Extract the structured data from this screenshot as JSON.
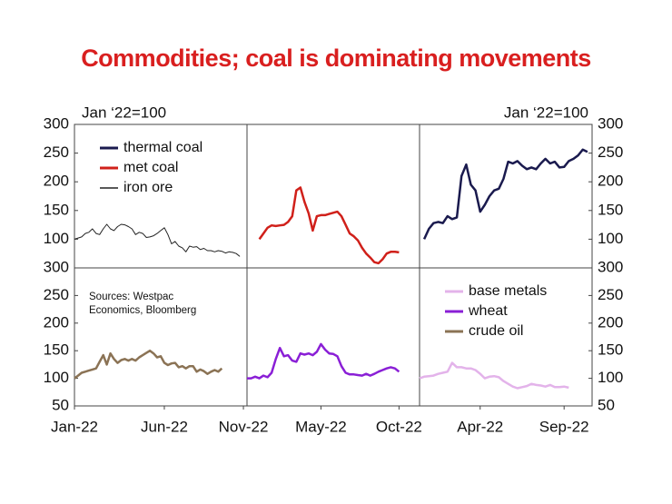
{
  "title": "Commodities; coal is dominating movements",
  "chart_data": [
    {
      "type": "line",
      "annotation": "Jan ‘22=100",
      "legend": "upper left",
      "yaxis_side": "left",
      "ylim": [
        50,
        300
      ],
      "yticks": [
        100,
        150,
        200,
        250,
        300
      ],
      "xlim": [
        0,
        48
      ],
      "x": [
        0,
        1,
        2,
        3,
        4,
        5,
        6,
        7,
        8,
        9,
        10,
        11,
        12,
        13,
        14,
        15,
        16,
        17,
        18,
        19,
        20,
        21,
        22,
        23,
        24,
        25,
        26,
        27,
        28,
        29,
        30,
        31,
        32,
        33,
        34,
        35,
        36,
        37,
        38,
        39,
        40,
        41,
        42,
        43,
        44,
        45,
        46
      ],
      "series": [
        {
          "name": "iron ore",
          "color": "#222222",
          "width": 1,
          "values": [
            100,
            102,
            104,
            110,
            112,
            118,
            110,
            108,
            118,
            126,
            118,
            115,
            122,
            126,
            125,
            122,
            118,
            108,
            112,
            110,
            103,
            104,
            106,
            110,
            115,
            120,
            108,
            92,
            96,
            88,
            85,
            78,
            88,
            86,
            87,
            82,
            84,
            80,
            80,
            78,
            80,
            79,
            76,
            78,
            77,
            75,
            70
          ]
        }
      ]
    },
    {
      "type": "line",
      "ylim": [
        50,
        300
      ],
      "xlim": [
        0,
        42
      ],
      "x": [
        3,
        4,
        5,
        6,
        7,
        8,
        9,
        10,
        11,
        12,
        13,
        14,
        15,
        16,
        17,
        18,
        19,
        20,
        21,
        22,
        23,
        24,
        25,
        26,
        27,
        28,
        29,
        30,
        31,
        32,
        33,
        34,
        35,
        36,
        37
      ],
      "series": [
        {
          "name": "met coal",
          "color": "#d0201a",
          "width": 2.5,
          "values": [
            100,
            110,
            120,
            124,
            123,
            124,
            125,
            130,
            140,
            185,
            190,
            165,
            145,
            115,
            140,
            142,
            142,
            144,
            146,
            148,
            140,
            125,
            110,
            105,
            98,
            85,
            75,
            68,
            60,
            58,
            65,
            75,
            78,
            78,
            77
          ]
        }
      ]
    },
    {
      "type": "line",
      "annotation": "Jan ‘22=100",
      "yaxis_side": "right",
      "ylim": [
        50,
        300
      ],
      "yticks": [
        100,
        150,
        200,
        250,
        300
      ],
      "xlim": [
        0,
        37
      ],
      "x": [
        1,
        2,
        3,
        4,
        5,
        6,
        7,
        8,
        9,
        10,
        11,
        12,
        13,
        14,
        15,
        16,
        17,
        18,
        19,
        20,
        21,
        22,
        23,
        24,
        25,
        26,
        27,
        28,
        29,
        30,
        31,
        32,
        33,
        34,
        35,
        36
      ],
      "series": [
        {
          "name": "thermal coal",
          "color": "#1a1a4e",
          "width": 2.5,
          "values": [
            100,
            118,
            128,
            130,
            128,
            140,
            135,
            138,
            210,
            230,
            195,
            185,
            148,
            160,
            175,
            185,
            188,
            205,
            235,
            232,
            236,
            228,
            222,
            225,
            222,
            232,
            240,
            232,
            235,
            225,
            226,
            236,
            240,
            246,
            256,
            252
          ]
        }
      ]
    },
    {
      "type": "line",
      "annotation": [
        "Sources: Westpac",
        "Economics, Bloomberg"
      ],
      "yaxis_side": "left",
      "ylim": [
        50,
        300
      ],
      "yticks": [
        50,
        100,
        150,
        200,
        250,
        300
      ],
      "xlim": [
        0,
        48
      ],
      "xticks": [
        {
          "value": 0,
          "label": "Jan-22"
        },
        {
          "value": 25,
          "label": "Jun-22"
        },
        {
          "value": 47,
          "label": "Nov-22"
        }
      ],
      "x": [
        0,
        1,
        2,
        3,
        4,
        5,
        6,
        7,
        8,
        9,
        10,
        11,
        12,
        13,
        14,
        15,
        16,
        17,
        18,
        19,
        20,
        21,
        22,
        23,
        24,
        25,
        26,
        27,
        28,
        29,
        30,
        31,
        32,
        33,
        34,
        35,
        36,
        37,
        38,
        39,
        40,
        41
      ],
      "series": [
        {
          "name": "crude oil",
          "color": "#8b7355",
          "width": 2.5,
          "values": [
            100,
            105,
            110,
            112,
            114,
            116,
            118,
            130,
            142,
            125,
            145,
            135,
            128,
            133,
            135,
            132,
            135,
            132,
            138,
            142,
            146,
            150,
            145,
            138,
            140,
            128,
            124,
            127,
            128,
            120,
            122,
            118,
            122,
            122,
            112,
            116,
            113,
            108,
            112,
            115,
            112,
            118
          ]
        }
      ]
    },
    {
      "type": "line",
      "ylim": [
        50,
        300
      ],
      "xlim": [
        0,
        42
      ],
      "xticks": [
        {
          "value": 18,
          "label": "May-22"
        },
        {
          "value": 37,
          "label": "Oct-22"
        }
      ],
      "x": [
        0,
        1,
        2,
        3,
        4,
        5,
        6,
        7,
        8,
        9,
        10,
        11,
        12,
        13,
        14,
        15,
        16,
        17,
        18,
        19,
        20,
        21,
        22,
        23,
        24,
        25,
        26,
        27,
        28,
        29,
        30,
        31,
        32,
        33,
        34,
        35,
        36,
        37
      ],
      "series": [
        {
          "name": "wheat",
          "color": "#8a1fd6",
          "width": 2.5,
          "values": [
            100,
            100,
            103,
            100,
            105,
            102,
            110,
            135,
            155,
            140,
            142,
            132,
            130,
            145,
            143,
            145,
            142,
            148,
            162,
            152,
            145,
            144,
            140,
            122,
            110,
            107,
            107,
            106,
            105,
            108,
            105,
            108,
            112,
            115,
            118,
            120,
            118,
            112
          ]
        }
      ]
    },
    {
      "type": "line",
      "legend": "upper left",
      "yaxis_side": "right",
      "ylim": [
        50,
        300
      ],
      "yticks": [
        50,
        100,
        150,
        200,
        250,
        300
      ],
      "xlim": [
        0,
        37
      ],
      "xticks": [
        {
          "value": 13,
          "label": "Apr-22"
        },
        {
          "value": 31,
          "label": "Sep-22"
        }
      ],
      "x": [
        0,
        1,
        2,
        3,
        4,
        5,
        6,
        7,
        8,
        9,
        10,
        11,
        12,
        13,
        14,
        15,
        16,
        17,
        18,
        19,
        20,
        21,
        22,
        23,
        24,
        25,
        26,
        27,
        28,
        29,
        30,
        31,
        32
      ],
      "series": [
        {
          "name": "base metals",
          "color": "#e3b3ea",
          "width": 2.5,
          "values": [
            100,
            103,
            104,
            105,
            108,
            110,
            112,
            128,
            120,
            120,
            118,
            118,
            115,
            108,
            100,
            103,
            104,
            102,
            95,
            90,
            85,
            82,
            84,
            86,
            90,
            88,
            87,
            85,
            88,
            84,
            84,
            85,
            83
          ]
        }
      ]
    }
  ]
}
